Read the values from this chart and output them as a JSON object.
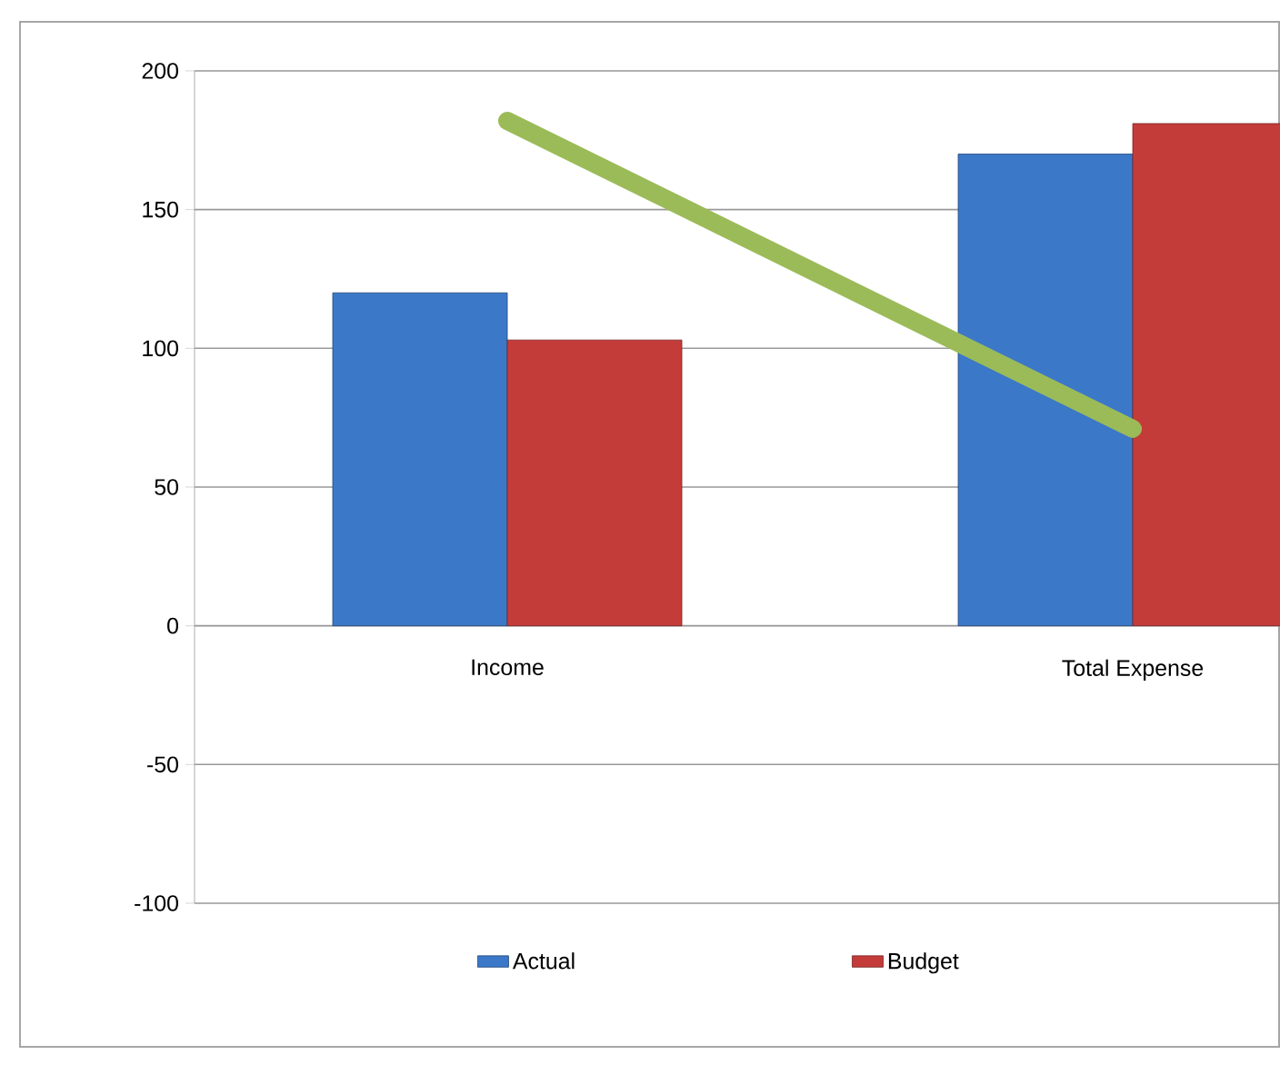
{
  "chart_data": {
    "type": "bar",
    "categories": [
      "Income",
      "Total Expense"
    ],
    "series": [
      {
        "name": "Actual",
        "color": "#3c78c8",
        "values": [
          120,
          170
        ]
      },
      {
        "name": "Budget",
        "color": "#c43c3a",
        "values": [
          103,
          181
        ]
      },
      {
        "type": "line",
        "color": "#9bbb59",
        "values": [
          182,
          71
        ]
      }
    ],
    "ylim": [
      -100,
      200
    ],
    "yticks": [
      -100,
      -50,
      0,
      50,
      100,
      150,
      200
    ],
    "grid": "y",
    "legend": "bottom",
    "marker": "none"
  }
}
